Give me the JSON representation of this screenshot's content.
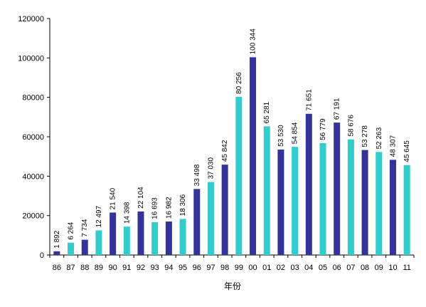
{
  "chart_data": {
    "type": "bar",
    "xlabel": "年份",
    "ylabel": "",
    "ylim": [
      0,
      120000
    ],
    "yticks": [
      "0",
      "20000",
      "40000",
      "60000",
      "80000",
      "100000",
      "120000"
    ],
    "ytick_values": [
      0,
      20000,
      40000,
      60000,
      80000,
      100000,
      120000
    ],
    "grid": false,
    "legend": "none",
    "categories": [
      "86",
      "87",
      "88",
      "89",
      "90",
      "91",
      "92",
      "93",
      "94",
      "95",
      "96",
      "97",
      "98",
      "99",
      "00",
      "01",
      "02",
      "03",
      "04",
      "05",
      "06",
      "07",
      "08",
      "09",
      "10",
      "11"
    ],
    "values": [
      1892,
      6264,
      7734,
      12497,
      21540,
      14398,
      22104,
      16693,
      16982,
      18306,
      33498,
      37030,
      45842,
      80256,
      100344,
      65281,
      53530,
      54854,
      71651,
      56779,
      67191,
      58676,
      53278,
      52263,
      48307,
      45645
    ],
    "value_labels": [
      "1 892",
      "6 264",
      "7 734",
      "12 497",
      "21 540",
      "14 398",
      "22 104",
      "16 693",
      "16 982",
      "18 306",
      "33 498",
      "37 030",
      "45 842",
      "80 256",
      "100 344",
      "65 281",
      "53 530",
      "54 854",
      "71 651",
      "56 779",
      "67 191",
      "58 676",
      "53 278",
      "52 263",
      "48 307",
      "45 645"
    ],
    "bar_colors": [
      "navy",
      "cyan",
      "navy",
      "cyan",
      "navy",
      "cyan",
      "navy",
      "cyan",
      "navy",
      "cyan",
      "navy",
      "cyan",
      "navy",
      "cyan",
      "navy",
      "cyan",
      "navy",
      "cyan",
      "navy",
      "cyan",
      "navy",
      "cyan",
      "navy",
      "cyan",
      "navy",
      "cyan"
    ],
    "colors": {
      "navy": "#33339a",
      "cyan": "#33cccc",
      "axis": "#000000"
    }
  }
}
